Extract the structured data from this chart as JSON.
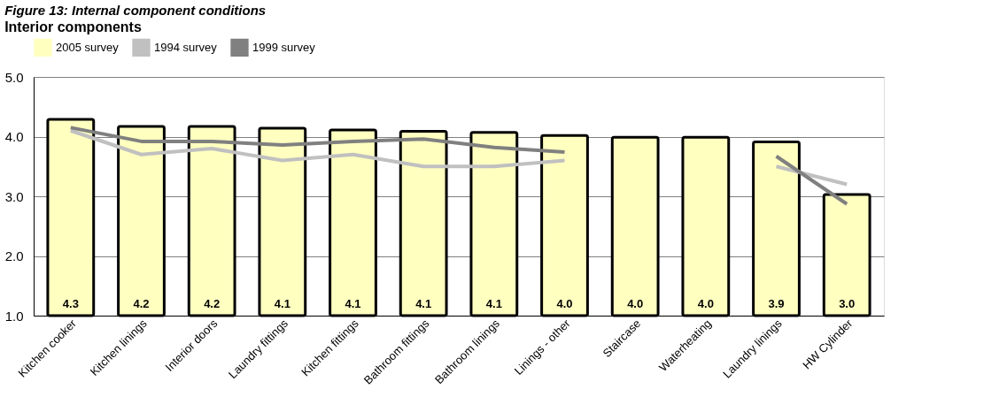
{
  "chart_data": {
    "type": "bar",
    "title": "Figure 13: Internal component conditions",
    "subtitle": "Interior components",
    "categories": [
      "Kitchen cooker",
      "Kitchen linings",
      "Interior doors",
      "Laundry fittings",
      "Kitchen fittings",
      "Bathroom fittings",
      "Bathroom linings",
      "Linings - other",
      "Staircase",
      "Waterheating",
      "Laundry linings",
      "HW Cylinder"
    ],
    "series": [
      {
        "name": "2005 survey",
        "color": "#ffffc0",
        "values": [
          4.29,
          4.17,
          4.17,
          4.14,
          4.11,
          4.09,
          4.07,
          4.02,
          3.99,
          3.99,
          3.91,
          3.03
        ],
        "value_labels": [
          "4.3",
          "4.2",
          "4.2",
          "4.1",
          "4.1",
          "4.1",
          "4.1",
          "4.0",
          "4.0",
          "4.0",
          "3.9",
          "3.0"
        ]
      },
      {
        "name": "1994 survey",
        "type": "line",
        "color": "#c0c0c0",
        "values": [
          4.1,
          3.7,
          3.8,
          3.6,
          3.7,
          3.5,
          3.5,
          3.6,
          null,
          null,
          3.5,
          3.2
        ]
      },
      {
        "name": "1999 survey",
        "type": "line",
        "color": "#808080",
        "values": [
          4.15,
          3.92,
          3.92,
          3.86,
          3.92,
          3.96,
          3.82,
          3.74,
          null,
          null,
          3.67,
          2.87
        ]
      }
    ],
    "ylim": [
      1.0,
      5.0
    ],
    "yticks": [
      {
        "value": 1,
        "label": "1.0"
      },
      {
        "value": 2,
        "label": "2.0"
      },
      {
        "value": 3,
        "label": "3.0"
      },
      {
        "value": 4,
        "label": "4.0"
      },
      {
        "value": 5,
        "label": "5.0"
      }
    ],
    "grid": "y",
    "legend": "top",
    "line_style": "solid",
    "marker": "none"
  }
}
